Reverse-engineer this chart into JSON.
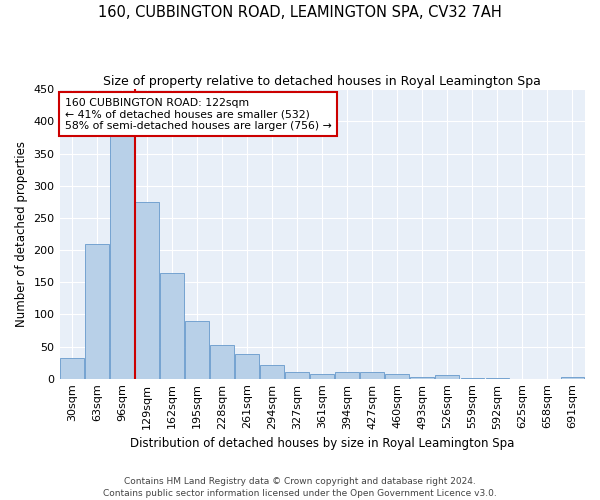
{
  "title": "160, CUBBINGTON ROAD, LEAMINGTON SPA, CV32 7AH",
  "subtitle": "Size of property relative to detached houses in Royal Leamington Spa",
  "xlabel": "Distribution of detached houses by size in Royal Leamington Spa",
  "ylabel": "Number of detached properties",
  "footer1": "Contains HM Land Registry data © Crown copyright and database right 2024.",
  "footer2": "Contains public sector information licensed under the Open Government Licence v3.0.",
  "bar_labels": [
    "30sqm",
    "63sqm",
    "96sqm",
    "129sqm",
    "162sqm",
    "195sqm",
    "228sqm",
    "261sqm",
    "294sqm",
    "327sqm",
    "361sqm",
    "394sqm",
    "427sqm",
    "460sqm",
    "493sqm",
    "526sqm",
    "559sqm",
    "592sqm",
    "625sqm",
    "658sqm",
    "691sqm"
  ],
  "bar_values": [
    32,
    210,
    378,
    275,
    165,
    90,
    53,
    38,
    21,
    11,
    8,
    11,
    10,
    8,
    3,
    5,
    1,
    1,
    0,
    0,
    3
  ],
  "bar_color": "#b8d0e8",
  "bar_edge_color": "#6699cc",
  "bg_color": "#e8eff8",
  "grid_color": "#ffffff",
  "property_label": "160 CUBBINGTON ROAD: 122sqm",
  "annotation_line2": "← 41% of detached houses are smaller (532)",
  "annotation_line3": "58% of semi-detached houses are larger (756) →",
  "vline_color": "#cc0000",
  "annotation_box_edgecolor": "#cc0000",
  "ylim": [
    0,
    450
  ],
  "yticks": [
    0,
    50,
    100,
    150,
    200,
    250,
    300,
    350,
    400,
    450
  ]
}
